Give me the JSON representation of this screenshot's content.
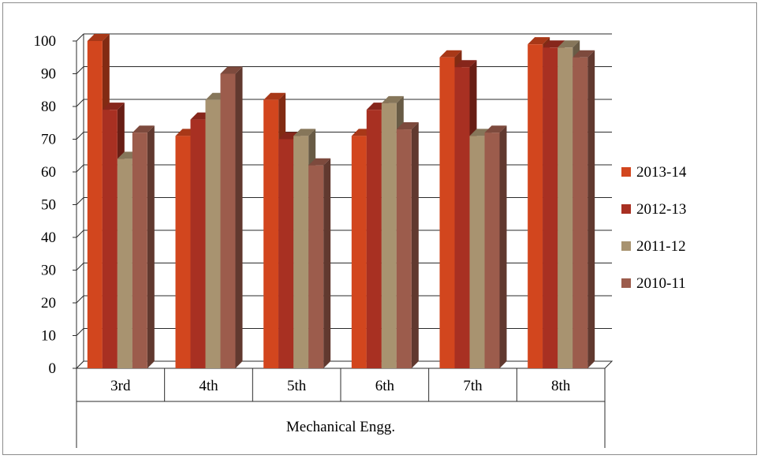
{
  "chart_data": {
    "type": "bar",
    "style": "3d-clustered-column",
    "categories": [
      "3rd",
      "4th",
      "5th",
      "6th",
      "7th",
      "8th"
    ],
    "group_label": "Mechanical Engg.",
    "series": [
      {
        "name": "2013-14",
        "values": [
          100,
          71,
          82,
          71,
          95,
          99
        ],
        "color": "#d2461e"
      },
      {
        "name": "2012-13",
        "values": [
          79,
          76,
          70,
          79,
          92,
          98
        ],
        "color": "#a83022"
      },
      {
        "name": "2011-12",
        "values": [
          64,
          82,
          71,
          81,
          71,
          98
        ],
        "color": "#a89370"
      },
      {
        "name": "2010-11",
        "values": [
          72,
          90,
          62,
          73,
          72,
          95
        ],
        "color": "#9c5c4c"
      }
    ],
    "ylim": [
      0,
      100
    ],
    "yticks": [
      0,
      10,
      20,
      30,
      40,
      50,
      60,
      70,
      80,
      90,
      100
    ],
    "grid": true,
    "legend": "right"
  }
}
